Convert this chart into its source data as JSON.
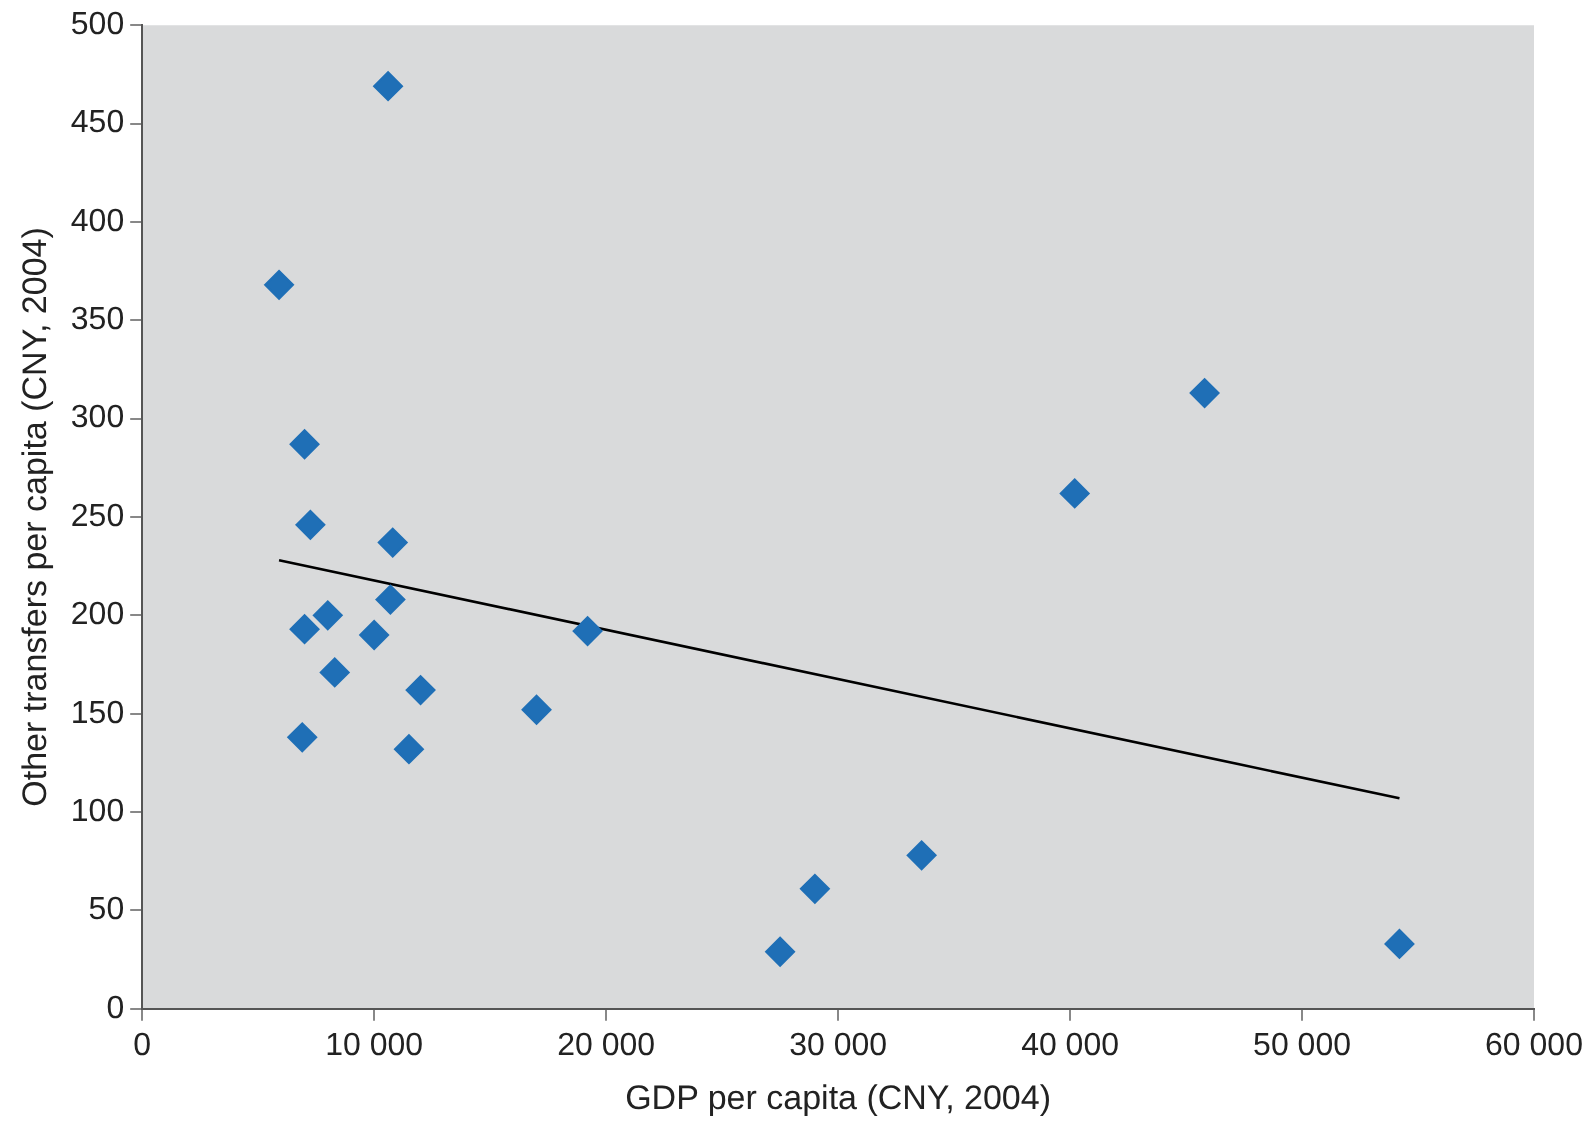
{
  "chart_data": {
    "type": "scatter",
    "xlabel": "GDP per capita (CNY, 2004)",
    "ylabel": "Other transfers per capita (CNY, 2004)",
    "xlim": [
      0,
      60000
    ],
    "ylim": [
      0,
      500
    ],
    "xticks": [
      0,
      {
        "value": 10000,
        "label": "10 000"
      },
      {
        "value": 20000,
        "label": "20 000"
      },
      {
        "value": 30000,
        "label": "30 000"
      },
      {
        "value": 40000,
        "label": "40 000"
      },
      {
        "value": 50000,
        "label": "50 000"
      },
      {
        "value": 60000,
        "label": "60 000"
      }
    ],
    "yticks": [
      0,
      50,
      100,
      150,
      200,
      250,
      300,
      350,
      400,
      450,
      500
    ],
    "grid": false,
    "legend": false,
    "series": [
      {
        "marker": "diamond",
        "color": "#1f6fb6",
        "x": [
          10600,
          5900,
          7000,
          7250,
          10800,
          8000,
          10700,
          7000,
          10000,
          8300,
          12000,
          19200,
          17000,
          11500,
          6900,
          27500,
          29000,
          33600,
          40200,
          45800,
          54200
        ],
        "values": [
          469,
          368,
          287,
          246,
          237,
          200,
          208,
          193,
          190,
          171,
          162,
          192,
          152,
          132,
          138,
          29,
          61,
          78,
          262,
          313,
          33
        ]
      },
      {
        "type": "line",
        "color": "#000000",
        "x": [
          5900,
          54200
        ],
        "values": [
          228,
          107
        ]
      }
    ]
  }
}
